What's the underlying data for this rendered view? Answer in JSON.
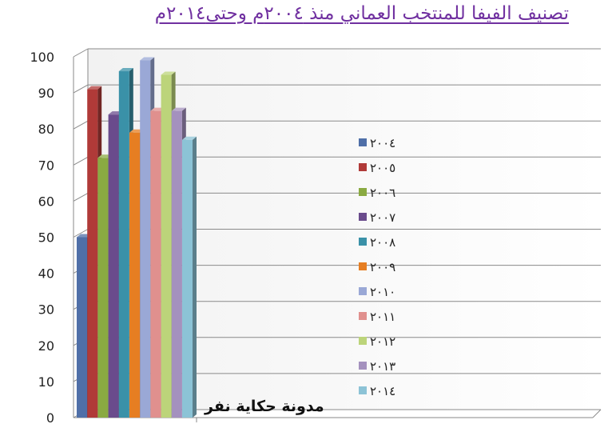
{
  "chart_data": {
    "type": "bar",
    "title": "تصنيف الفيفا للمنتخب العماني منذ ٢٠٠٤م وحتى٢٠١٤م",
    "xlabel": "",
    "ylabel": "",
    "ylim": [
      0,
      100
    ],
    "yticks": [
      "0",
      "10",
      "20",
      "30",
      "40",
      "50",
      "60",
      "70",
      "80",
      "90",
      "100"
    ],
    "grid": true,
    "legend_position": "right",
    "series": [
      {
        "name": "٢٠٠٤",
        "value": 50,
        "color": "#4f6fa8"
      },
      {
        "name": "٢٠٠٥",
        "value": 91,
        "color": "#b03a38"
      },
      {
        "name": "٢٠٠٦",
        "value": 72,
        "color": "#8aaa42"
      },
      {
        "name": "٢٠٠٧",
        "value": 84,
        "color": "#6a4b8c"
      },
      {
        "name": "٢٠٠٨",
        "value": 96,
        "color": "#3a91a8"
      },
      {
        "name": "٢٠٠٩",
        "value": 79,
        "color": "#e67e22"
      },
      {
        "name": "٢٠١٠",
        "value": 99,
        "color": "#9aa8d6"
      },
      {
        "name": "٢٠١١",
        "value": 85,
        "color": "#e0908e"
      },
      {
        "name": "٢٠١٢",
        "value": 95,
        "color": "#bcd47a"
      },
      {
        "name": "٢٠١٣",
        "value": 85,
        "color": "#a491be"
      },
      {
        "name": "٢٠١٤",
        "value": 77,
        "color": "#8cc3d6"
      }
    ]
  },
  "watermark": "مدونة حكاية نفر"
}
